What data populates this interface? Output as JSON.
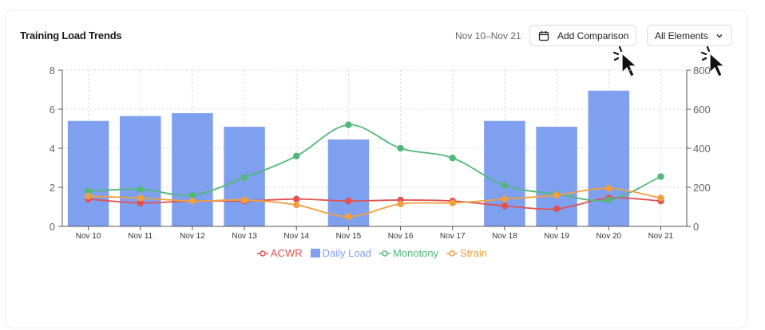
{
  "header": {
    "title": "Training Load Trends",
    "date_range": "Nov 10–Nov 21",
    "compare_label": "Add Comparison",
    "filter_label": "All Elements"
  },
  "icons": {
    "calendar": "calendar-icon",
    "chevron": "chevron-down-icon",
    "cursor": "pointer-click-icon"
  },
  "chart_data": {
    "type": "bar",
    "categories": [
      "Nov 10",
      "Nov 11",
      "Nov 12",
      "Nov 13",
      "Nov 14",
      "Nov 15",
      "Nov 16",
      "Nov 17",
      "Nov 18",
      "Nov 19",
      "Nov 20",
      "Nov 21"
    ],
    "left_axis": {
      "ylim": [
        0,
        8
      ],
      "ticks": [
        "0",
        "2",
        "4",
        "6",
        "8"
      ]
    },
    "right_axis": {
      "ylim": [
        0,
        800
      ],
      "ticks": [
        "0",
        "200",
        "400",
        "600",
        "800"
      ]
    },
    "grid": "dotted",
    "legend_position": "bottom",
    "series": [
      {
        "name": "ACWR",
        "type": "line",
        "axis": "left",
        "color": "#e05252",
        "values": [
          1.4,
          1.2,
          1.3,
          1.3,
          1.4,
          1.3,
          1.35,
          1.3,
          1.05,
          0.9,
          1.45,
          1.3
        ]
      },
      {
        "name": "Daily Load",
        "type": "bar",
        "axis": "right",
        "color": "#7fa0ef",
        "values": [
          540,
          565,
          580,
          510,
          null,
          445,
          null,
          null,
          540,
          510,
          695,
          null
        ]
      },
      {
        "name": "Monotony",
        "type": "line",
        "axis": "left",
        "color": "#52b87a",
        "values": [
          1.8,
          1.9,
          1.6,
          2.5,
          3.6,
          5.2,
          4.0,
          3.5,
          2.1,
          1.65,
          1.35,
          2.55
        ]
      },
      {
        "name": "Strain",
        "type": "line",
        "axis": "right",
        "color": "#f0a040",
        "values": [
          155,
          145,
          130,
          135,
          110,
          50,
          115,
          120,
          140,
          160,
          195,
          145
        ]
      }
    ]
  }
}
